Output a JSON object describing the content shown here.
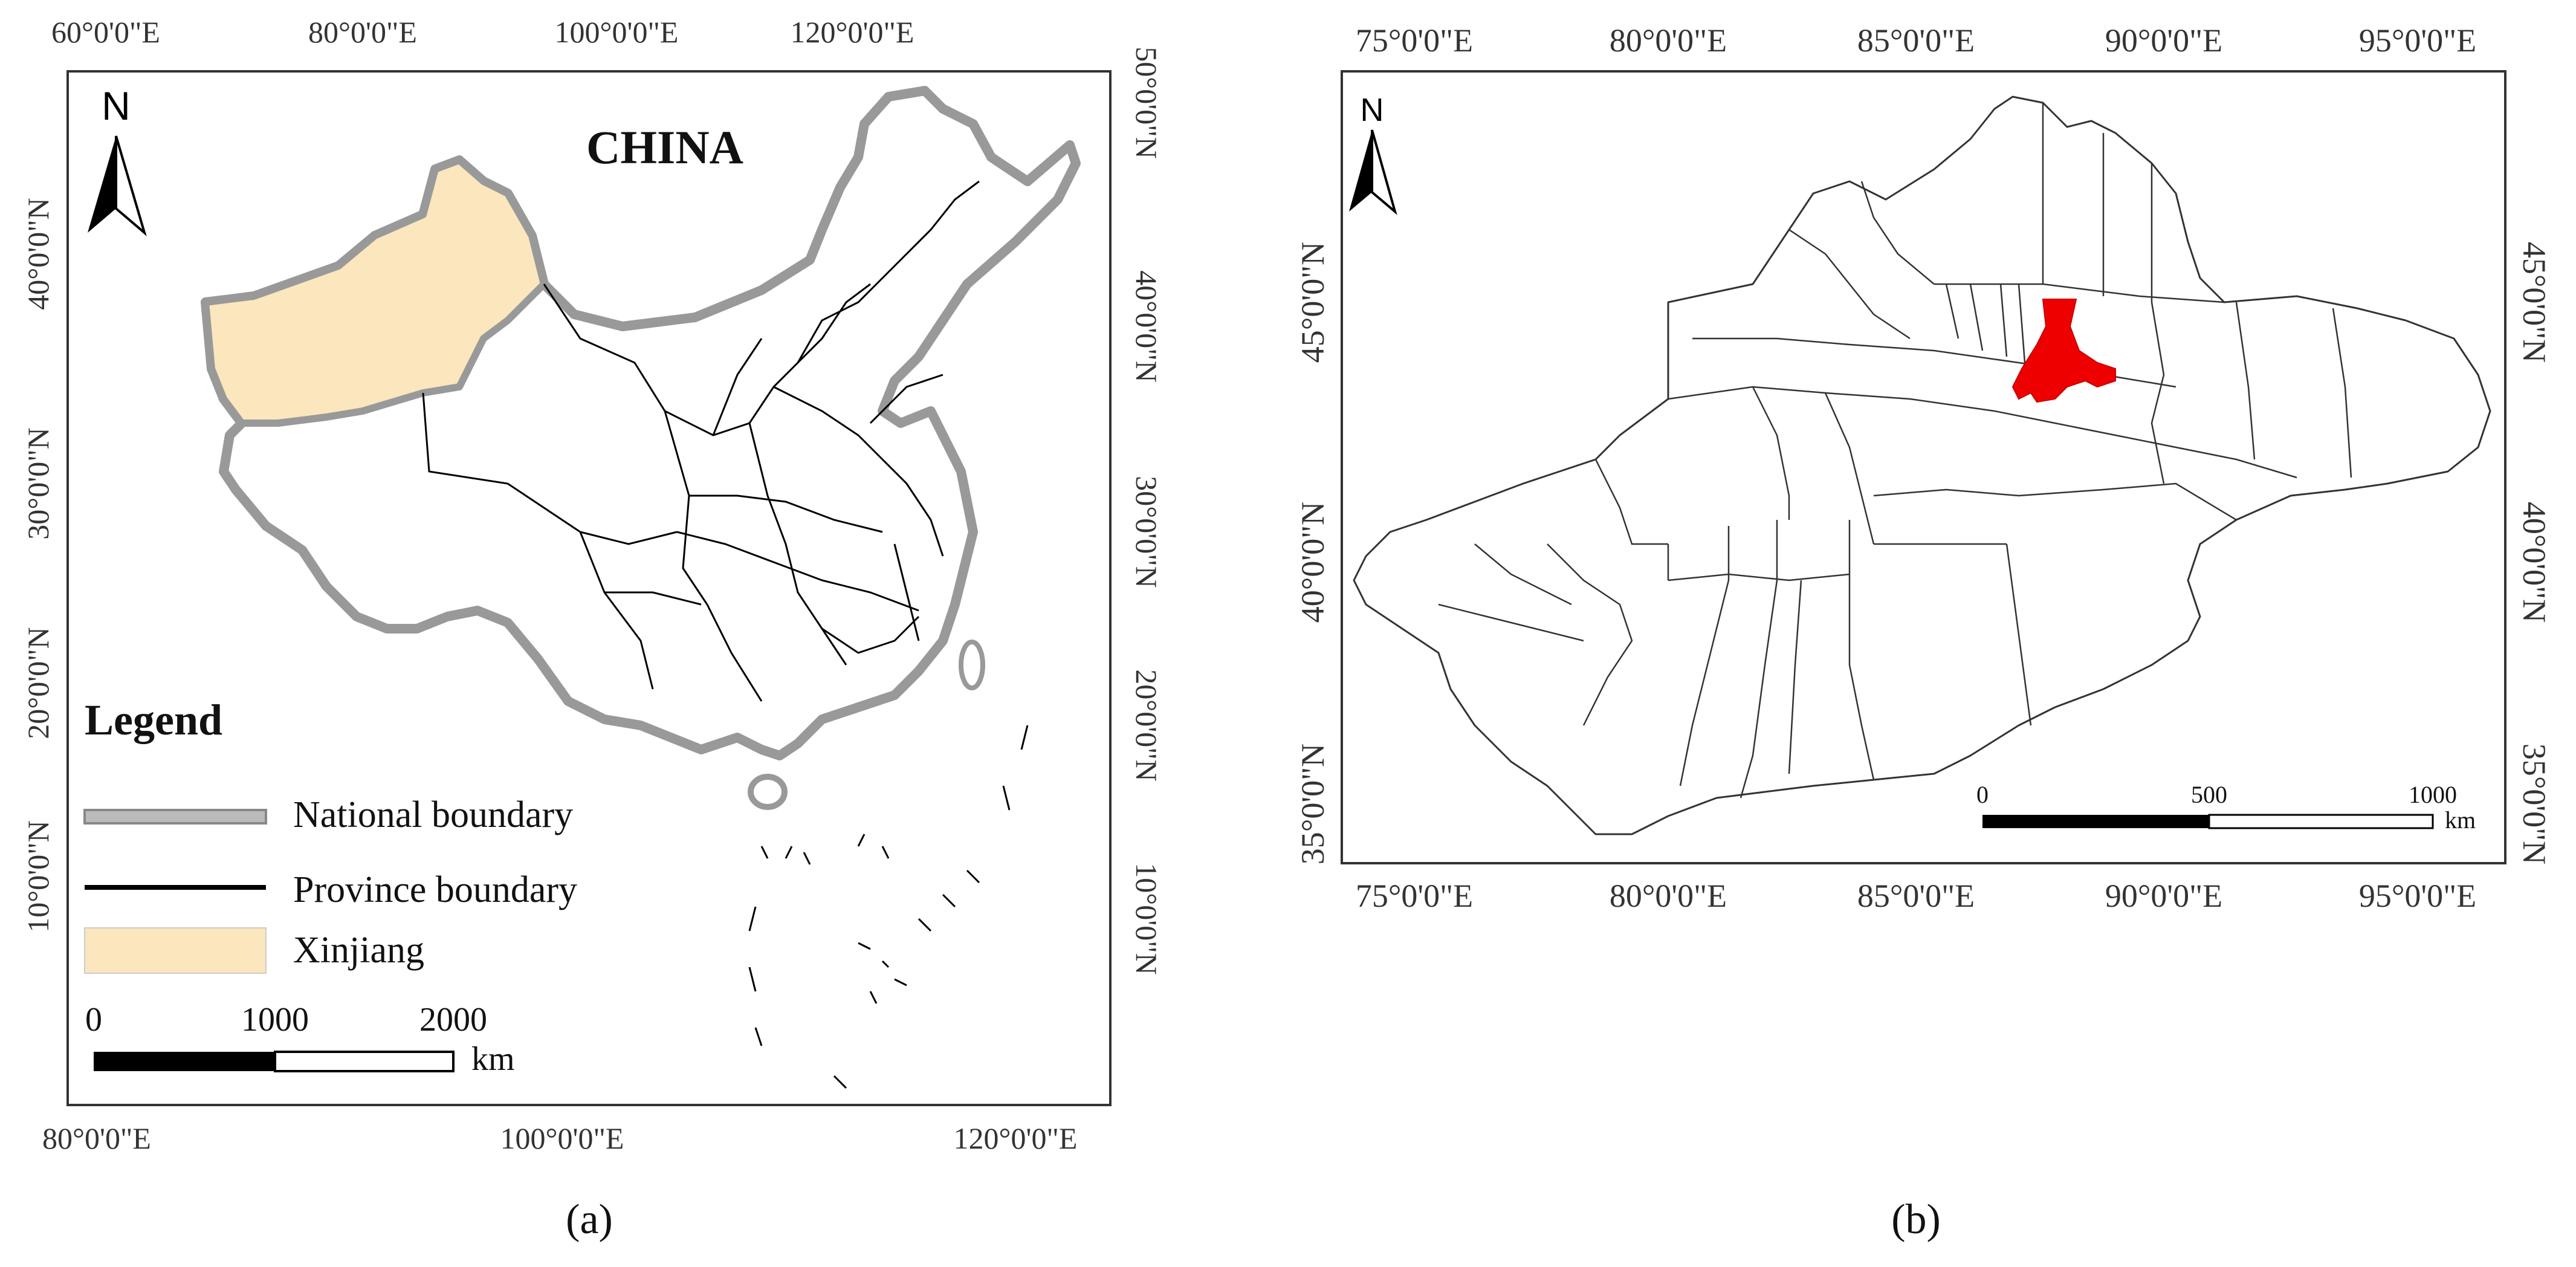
{
  "panel_a": {
    "caption": "(a)",
    "map_title": "CHINA",
    "north_label": "N",
    "top_ticks": [
      "60°0'0\"E",
      "80°0'0\"E",
      "100°0'0\"E",
      "120°0'0\"E"
    ],
    "bottom_ticks": [
      "80°0'0\"E",
      "100°0'0\"E",
      "120°0'0\"E"
    ],
    "left_ticks": [
      "40°0'0\"N",
      "30°0'0\"N",
      "20°0'0\"N",
      "10°0'0\"N"
    ],
    "right_ticks": [
      "50°0'0\"N",
      "40°0'0\"N",
      "30°0'0\"N",
      "20°0'0\"N",
      "10°0'0\"N"
    ],
    "legend": {
      "title": "Legend",
      "items": [
        {
          "label": "National boundary"
        },
        {
          "label": "Province boundary"
        },
        {
          "label": "Xinjiang"
        }
      ]
    },
    "scale": {
      "labels": [
        "0",
        "1000",
        "2000"
      ],
      "unit": "km"
    },
    "colors": {
      "xinjiang_fill": "#fbe6bd",
      "national_boundary": "#999999",
      "province_boundary": "#000000"
    }
  },
  "panel_b": {
    "caption": "(b)",
    "north_label": "N",
    "top_ticks": [
      "75°0'0\"E",
      "80°0'0\"E",
      "85°0'0\"E",
      "90°0'0\"E",
      "95°0'0\"E"
    ],
    "bottom_ticks": [
      "75°0'0\"E",
      "80°0'0\"E",
      "85°0'0\"E",
      "90°0'0\"E",
      "95°0'0\"E"
    ],
    "left_ticks": [
      "45°0'0\"N",
      "40°0'0\"N",
      "35°0'0\"N"
    ],
    "right_ticks": [
      "45°0'0\"N",
      "40°0'0\"N",
      "35°0'0\"N"
    ],
    "scale": {
      "labels": [
        "0",
        "500",
        "1000"
      ],
      "unit": "km"
    },
    "colors": {
      "highlight_fill": "#ee0000",
      "boundary": "#333333"
    }
  }
}
